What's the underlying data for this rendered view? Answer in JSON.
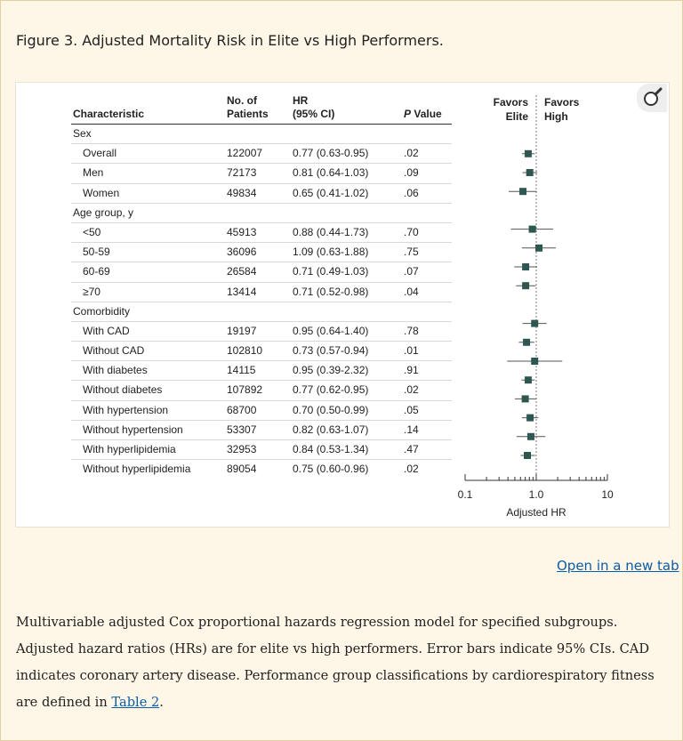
{
  "figure_title": "Figure 3. Adjusted Mortality Risk in Elite vs High Performers.",
  "open_link": "Open in a new tab",
  "caption": {
    "text": "Multivariable adjusted Cox proportional hazards regression model for specified subgroups. Adjusted hazard ratios (HRs) are for elite vs high performers. Error bars indicate 95% CIs. CAD indicates coronary artery disease. Performance group classifications by cardiorespiratory fitness are defined in ",
    "link": "Table 2",
    "end": "."
  },
  "table": {
    "headers": {
      "characteristic": "Characteristic",
      "patients_1": "No. of",
      "patients_2": "Patients",
      "hr_1": "HR",
      "hr_2": "(95% CI)",
      "p_1": "P",
      "p_2": " Value"
    }
  },
  "chart_data": {
    "type": "forest",
    "xlabel": "Adjusted HR",
    "xscale": "log",
    "xlim": [
      0.1,
      10
    ],
    "xticks": [
      {
        "value": 0.1,
        "label": "0.1"
      },
      {
        "value": 1,
        "label": "1.0"
      },
      {
        "value": 10,
        "label": "10"
      }
    ],
    "reference_line": 1.0,
    "favors_left": [
      "Favors",
      "Elite"
    ],
    "favors_right": [
      "Favors",
      "High"
    ],
    "rows": [
      {
        "label": "Sex",
        "group": true
      },
      {
        "label": "Overall",
        "n": "122007",
        "ci_text": "0.77 (0.63-0.95)",
        "p": ".02",
        "hr": 0.77,
        "lo": 0.63,
        "hi": 0.95
      },
      {
        "label": "Men",
        "n": "72173",
        "ci_text": "0.81 (0.64-1.03)",
        "p": ".09",
        "hr": 0.81,
        "lo": 0.64,
        "hi": 1.03
      },
      {
        "label": "Women",
        "n": "49834",
        "ci_text": "0.65 (0.41-1.02)",
        "p": ".06",
        "hr": 0.65,
        "lo": 0.41,
        "hi": 1.02
      },
      {
        "label": "Age group, y",
        "group": true
      },
      {
        "label": "<50",
        "n": "45913",
        "ci_text": "0.88 (0.44-1.73)",
        "p": ".70",
        "hr": 0.88,
        "lo": 0.44,
        "hi": 1.73
      },
      {
        "label": "50-59",
        "n": "36096",
        "ci_text": "1.09 (0.63-1.88)",
        "p": ".75",
        "hr": 1.09,
        "lo": 0.63,
        "hi": 1.88
      },
      {
        "label": "60-69",
        "n": "26584",
        "ci_text": "0.71 (0.49-1.03)",
        "p": ".07",
        "hr": 0.71,
        "lo": 0.49,
        "hi": 1.03
      },
      {
        "label": "≥70",
        "n": "13414",
        "ci_text": "0.71 (0.52-0.98)",
        "p": ".04",
        "hr": 0.71,
        "lo": 0.52,
        "hi": 0.98
      },
      {
        "label": "Comorbidity",
        "group": true
      },
      {
        "label": "With CAD",
        "n": "19197",
        "ci_text": "0.95 (0.64-1.40)",
        "p": ".78",
        "hr": 0.95,
        "lo": 0.64,
        "hi": 1.4
      },
      {
        "label": "Without CAD",
        "n": "102810",
        "ci_text": "0.73 (0.57-0.94)",
        "p": ".01",
        "hr": 0.73,
        "lo": 0.57,
        "hi": 0.94
      },
      {
        "label": "With diabetes",
        "n": "14115",
        "ci_text": "0.95 (0.39-2.32)",
        "p": ".91",
        "hr": 0.95,
        "lo": 0.39,
        "hi": 2.32
      },
      {
        "label": "Without diabetes",
        "n": "107892",
        "ci_text": "0.77 (0.62-0.95)",
        "p": ".02",
        "hr": 0.77,
        "lo": 0.62,
        "hi": 0.95
      },
      {
        "label": "With hypertension",
        "n": "68700",
        "ci_text": "0.70 (0.50-0.99)",
        "p": ".05",
        "hr": 0.7,
        "lo": 0.5,
        "hi": 0.99
      },
      {
        "label": "Without hypertension",
        "n": "53307",
        "ci_text": "0.82 (0.63-1.07)",
        "p": ".14",
        "hr": 0.82,
        "lo": 0.63,
        "hi": 1.07
      },
      {
        "label": "With hyperlipidemia",
        "n": "32953",
        "ci_text": "0.84 (0.53-1.34)",
        "p": ".47",
        "hr": 0.84,
        "lo": 0.53,
        "hi": 1.34
      },
      {
        "label": "Without hyperlipidemia",
        "n": "89054",
        "ci_text": "0.75 (0.60-0.96)",
        "p": ".02",
        "hr": 0.75,
        "lo": 0.6,
        "hi": 0.96
      }
    ],
    "colors": {
      "marker": "#2f5752",
      "line": "#555555",
      "axis": "#333333"
    }
  }
}
